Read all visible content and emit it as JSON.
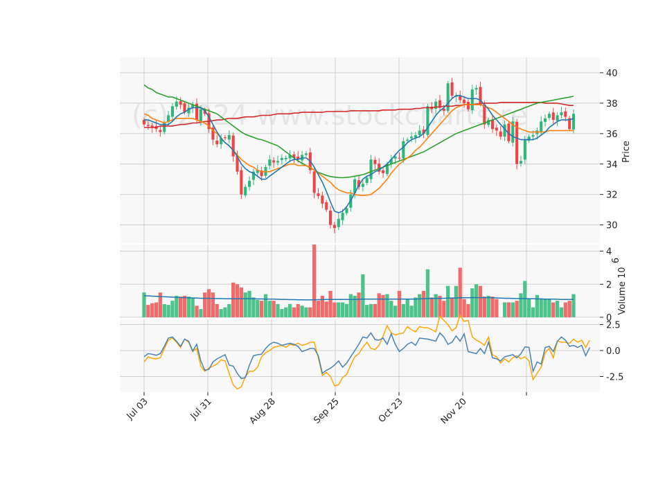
{
  "chart_data": {
    "type": "candlestick",
    "watermark": "(c) 2024 www.stockcharts.re",
    "x_ticks": [
      "Jul 03",
      "Jul 31",
      "Aug 28",
      "Sep 25",
      "Oct 23",
      "Nov 20"
    ],
    "price_axis": {
      "label": "Price",
      "ticks": [
        30,
        32,
        34,
        36,
        38,
        40
      ],
      "ylim": [
        28.8,
        41
      ]
    },
    "volume_axis": {
      "label": "Volume",
      "exponent_label": "10",
      "exponent": "6",
      "ticks": [
        0,
        2,
        4
      ],
      "ylim": [
        0,
        4.4
      ]
    },
    "osc_axis": {
      "ticks": [
        "-2.5",
        "0.0",
        "2.5"
      ],
      "ylim": [
        -4.0,
        3.0
      ]
    },
    "colors": {
      "up": "#2fb67a",
      "down": "#ef4444",
      "up_vol": "#4cc38a",
      "down_vol": "#f26b6b",
      "ma_short": "#1f77b4",
      "ma_mid": "#ff7f0e",
      "ma_long": "#2ca02c",
      "ma_200": "#d62728",
      "vol_ma": "#1f77b4",
      "osc1": "#4682b4",
      "osc2": "#ffa500",
      "panel_bg": "#f8f8f8",
      "grid": "#d0d0d0"
    },
    "closes": [
      36.6,
      36.5,
      36.4,
      36.3,
      36.1,
      36.7,
      37.2,
      37.8,
      38.1,
      37.9,
      37.4,
      37.7,
      37.9,
      36.9,
      37.6,
      37.3,
      36.3,
      35.6,
      35.3,
      35.7,
      35.7,
      35.9,
      34.5,
      33.5,
      32.0,
      32.5,
      32.9,
      33.5,
      33.6,
      33.2,
      33.8,
      34.3,
      34.1,
      34.2,
      34.4,
      34.4,
      34.6,
      34.4,
      34.3,
      34.6,
      34.7,
      33.6,
      32.1,
      31.9,
      31.4,
      31.0,
      30.0,
      29.8,
      30.4,
      30.8,
      31.1,
      32.0,
      33.0,
      32.5,
      32.7,
      33.1,
      34.3,
      34.0,
      33.5,
      33.4,
      34.0,
      34.3,
      34.5,
      34.4,
      35.5,
      35.6,
      35.8,
      35.9,
      36.2,
      36.0,
      37.8,
      37.6,
      38.1,
      37.7,
      37.5,
      39.3,
      38.5,
      38.5,
      38.2,
      38.0,
      37.6,
      38.9,
      39.0,
      38.0,
      36.6,
      36.9,
      36.3,
      36.2,
      35.8,
      36.6,
      35.5,
      36.8,
      34.0,
      34.2,
      35.6,
      35.8,
      35.9,
      36.2,
      36.8,
      37.0,
      37.3,
      36.9,
      37.2,
      37.4,
      37.1,
      36.3,
      37.3
    ],
    "ma_short": [
      36.9,
      36.9,
      36.8,
      36.7,
      36.6,
      36.6,
      36.6,
      36.8,
      37.1,
      37.3,
      37.4,
      37.6,
      37.7,
      37.7,
      37.7,
      37.5,
      37.1,
      36.6,
      36.1,
      35.7,
      35.4,
      35.2,
      34.9,
      34.5,
      34.0,
      33.7,
      33.5,
      33.4,
      33.2,
      33.0,
      33.0,
      33.2,
      33.4,
      33.6,
      33.8,
      34.0,
      34.2,
      34.3,
      34.3,
      34.4,
      34.4,
      34.2,
      33.8,
      33.3,
      32.8,
      32.2,
      31.5,
      30.9,
      30.8,
      30.9,
      31.2,
      31.6,
      32.1,
      32.6,
      33.0,
      33.2,
      33.3,
      33.5,
      33.6,
      33.8,
      34.0,
      34.3,
      34.6,
      34.9,
      35.1,
      35.4,
      35.6,
      35.7,
      35.8,
      36.0,
      36.4,
      36.8,
      37.2,
      37.5,
      37.7,
      38.0,
      38.3,
      38.5,
      38.5,
      38.4,
      38.3,
      38.3,
      38.3,
      38.2,
      37.9,
      37.6,
      37.2,
      36.9,
      36.6,
      36.3,
      36.0,
      35.8,
      35.7,
      35.6,
      35.6,
      35.6,
      35.6,
      35.7,
      35.9,
      36.1,
      36.4,
      36.6,
      36.8,
      36.9,
      36.9,
      36.9,
      37.0
    ],
    "ma_mid": [
      37.3,
      37.2,
      37.0,
      36.9,
      36.8,
      36.7,
      36.8,
      36.9,
      37.0,
      37.0,
      37.0,
      37.0,
      37.0,
      36.9,
      36.8,
      36.7,
      36.5,
      36.2,
      36.0,
      35.7,
      35.4,
      35.2,
      34.9,
      34.6,
      34.3,
      34.1,
      33.9,
      33.8,
      33.6,
      33.5,
      33.5,
      33.5,
      33.6,
      33.7,
      33.8,
      33.9,
      34.0,
      34.0,
      33.9,
      33.9,
      33.9,
      33.8,
      33.6,
      33.4,
      33.2,
      33.0,
      32.8,
      32.5,
      32.3,
      32.2,
      32.1,
      32.1,
      32.0,
      31.95,
      31.93,
      31.95,
      32.0,
      32.2,
      32.4,
      32.7,
      33.0,
      33.4,
      33.7,
      34.0,
      34.2,
      34.4,
      34.6,
      34.9,
      35.1,
      35.4,
      35.7,
      36.0,
      36.3,
      36.6,
      36.9,
      37.2,
      37.5,
      37.7,
      37.8,
      37.9,
      37.9,
      37.9,
      37.9,
      37.9,
      37.8,
      37.7,
      37.6,
      37.4,
      37.2,
      37.0,
      36.8,
      36.6,
      36.4,
      36.3,
      36.2,
      36.1,
      36.1,
      36.1,
      36.1,
      36.1,
      36.2,
      36.2,
      36.2,
      36.2,
      36.2,
      36.2,
      36.2
    ],
    "ma_long": [
      39.2,
      39.0,
      38.9,
      38.7,
      38.6,
      38.5,
      38.4,
      38.4,
      38.3,
      38.2,
      38.1,
      38.0,
      37.9,
      37.8,
      37.7,
      37.6,
      37.5,
      37.4,
      37.3,
      37.1,
      36.9,
      36.7,
      36.5,
      36.3,
      36.1,
      35.95,
      35.85,
      35.75,
      35.65,
      35.6,
      35.5,
      35.4,
      35.3,
      35.2,
      35.0,
      34.8,
      34.6,
      34.4,
      34.2,
      34.05,
      33.9,
      33.75,
      33.6,
      33.45,
      33.35,
      33.25,
      33.18,
      33.14,
      33.11,
      33.1,
      33.12,
      33.15,
      33.2,
      33.25,
      33.3,
      33.4,
      33.5,
      33.6,
      33.7,
      33.8,
      33.9,
      34.0,
      34.1,
      34.2,
      34.3,
      34.4,
      34.5,
      34.6,
      34.7,
      34.8,
      34.95,
      35.1,
      35.25,
      35.4,
      35.55,
      35.7,
      35.85,
      36.0,
      36.1,
      36.2,
      36.3,
      36.4,
      36.5,
      36.6,
      36.7,
      36.8,
      36.9,
      37.0,
      37.1,
      37.2,
      37.3,
      37.4,
      37.5,
      37.6,
      37.7,
      37.8,
      37.9,
      38.0,
      38.05,
      38.1,
      38.15,
      38.2,
      38.25,
      38.3,
      38.35,
      38.4,
      38.45
    ],
    "ma_200": [
      36.4,
      36.4,
      36.4,
      36.4,
      36.5,
      36.5,
      36.5,
      36.5,
      36.55,
      36.6,
      36.6,
      36.65,
      36.7,
      36.7,
      36.75,
      36.8,
      36.8,
      36.85,
      36.9,
      36.9,
      36.95,
      37.0,
      37.0,
      37.0,
      37.05,
      37.1,
      37.1,
      37.1,
      37.15,
      37.2,
      37.2,
      37.2,
      37.25,
      37.3,
      37.3,
      37.3,
      37.3,
      37.35,
      37.35,
      37.4,
      37.4,
      37.4,
      37.4,
      37.4,
      37.4,
      37.45,
      37.45,
      37.45,
      37.45,
      37.45,
      37.45,
      37.5,
      37.5,
      37.5,
      37.5,
      37.5,
      37.5,
      37.5,
      37.5,
      37.55,
      37.55,
      37.55,
      37.55,
      37.6,
      37.6,
      37.6,
      37.6,
      37.65,
      37.65,
      37.7,
      37.7,
      37.7,
      37.75,
      37.75,
      37.8,
      37.8,
      37.8,
      37.85,
      37.85,
      37.9,
      37.9,
      37.9,
      37.95,
      37.95,
      38.0,
      38.0,
      38.0,
      38.0,
      38.05,
      38.05,
      38.05,
      38.05,
      38.05,
      38.05,
      38.05,
      38.05,
      38.05,
      38.05,
      38.05,
      38.0,
      38.0,
      38.0,
      38.0,
      37.95,
      37.9,
      37.85,
      37.85
    ],
    "volume": [
      1.5,
      0.75,
      0.85,
      0.9,
      1.5,
      0.8,
      0.75,
      1.0,
      1.3,
      1.25,
      1.3,
      1.25,
      1.2,
      0.7,
      0.5,
      1.5,
      1.7,
      1.5,
      0.8,
      0.5,
      0.6,
      0.8,
      2.1,
      2.0,
      1.8,
      1.5,
      1.6,
      1.2,
      1.05,
      1.0,
      1.4,
      1.0,
      1.0,
      0.8,
      0.5,
      0.6,
      0.8,
      0.6,
      0.8,
      0.7,
      0.6,
      0.6,
      4.4,
      1.0,
      1.3,
      0.95,
      1.6,
      0.9,
      0.9,
      0.9,
      0.8,
      1.4,
      1.3,
      1.5,
      2.6,
      0.75,
      0.8,
      0.8,
      1.45,
      1.35,
      1.4,
      1.0,
      0.7,
      1.6,
      0.8,
      1.1,
      0.7,
      1.2,
      1.4,
      1.6,
      2.9,
      1.2,
      1.4,
      1.3,
      1.0,
      1.9,
      1.2,
      1.9,
      3.0,
      1.1,
      0.8,
      1.75,
      2.0,
      1.9,
      1.25,
      1.3,
      1.25,
      1.1,
      0.0,
      0.9,
      0.9,
      0.9,
      1.0,
      1.45,
      2.2,
      1.1,
      0.6,
      1.35,
      1.15,
      1.1,
      1.1,
      0.9,
      1.0,
      0.6,
      0.9,
      1.0,
      1.4
    ],
    "vol_ma": [
      1.3,
      1.3,
      1.28,
      1.27,
      1.25,
      1.24,
      1.23,
      1.22,
      1.2,
      1.2,
      1.19,
      1.18,
      1.17,
      1.16,
      1.15,
      1.15,
      1.15,
      1.14,
      1.13,
      1.13,
      1.12,
      1.12,
      1.12,
      1.12,
      1.12,
      1.12,
      1.12,
      1.12,
      1.11,
      1.11,
      1.1,
      1.1,
      1.1,
      1.09,
      1.08,
      1.08,
      1.07,
      1.07,
      1.06,
      1.06,
      1.05,
      1.05,
      1.06,
      1.07,
      1.07,
      1.08,
      1.08,
      1.08,
      1.08,
      1.08,
      1.08,
      1.08,
      1.08,
      1.09,
      1.1,
      1.1,
      1.1,
      1.1,
      1.1,
      1.1,
      1.1,
      1.1,
      1.1,
      1.1,
      1.1,
      1.1,
      1.1,
      1.1,
      1.11,
      1.12,
      1.13,
      1.14,
      1.14,
      1.15,
      1.15,
      1.16,
      1.16,
      1.17,
      1.18,
      1.18,
      1.18,
      1.19,
      1.19,
      1.19,
      1.19,
      1.19,
      1.18,
      1.17,
      1.16,
      1.15,
      1.15,
      1.14,
      1.13,
      1.13,
      1.13,
      1.12,
      1.12,
      1.11,
      1.11,
      1.1,
      1.1,
      1.1,
      1.09,
      1.08,
      1.08,
      1.08,
      1.08
    ],
    "osc1": [
      -0.6,
      -0.3,
      -0.35,
      -0.45,
      -0.3,
      0.4,
      1.2,
      1.3,
      0.9,
      0.4,
      1.1,
      0.9,
      -0.05,
      0.6,
      -1.0,
      -1.9,
      -1.8,
      -1.1,
      -0.8,
      -0.6,
      -0.4,
      -1.4,
      -1.5,
      -2.2,
      -2.7,
      -2.6,
      -1.4,
      -0.5,
      -0.4,
      -0.35,
      0.2,
      0.6,
      0.8,
      0.7,
      0.5,
      0.6,
      0.7,
      0.6,
      0.4,
      -0.1,
      0.05,
      0.2,
      0.2,
      -0.5,
      -2.2,
      -1.9,
      -1.7,
      -1.4,
      -1.0,
      -1.6,
      -1.2,
      -0.6,
      0.0,
      0.6,
      1.3,
      1.2,
      1.7,
      1.05,
      1.0,
      1.2,
      0.6,
      1.6,
      0.6,
      -0.1,
      0.2,
      0.6,
      0.8,
      0.5,
      1.2,
      1.15,
      1.1,
      1.0,
      0.9,
      1.7,
      1.3,
      0.6,
      0.8,
      1.4,
      0.9,
      1.6,
      -0.1,
      -0.2,
      -0.3,
      0.2,
      -0.3,
      0.8,
      -0.7,
      -0.8,
      -1.0,
      -0.6,
      -0.5,
      -0.4,
      -0.7,
      -0.3,
      0.35,
      0.3,
      -2.0,
      -1.1,
      -1.3,
      0.3,
      0.4,
      -0.1,
      0.9,
      1.3,
      1.0,
      0.4,
      0.5,
      0.3,
      0.5,
      -0.5,
      0.3
    ],
    "osc2": [
      -1.1,
      -0.6,
      -0.75,
      -0.8,
      -0.7,
      0.2,
      1.0,
      1.2,
      0.8,
      0.3,
      1.1,
      0.8,
      -0.1,
      0.2,
      -1.5,
      -2.0,
      -1.7,
      -1.5,
      -1.3,
      -0.9,
      -1.0,
      -2.2,
      -3.3,
      -3.7,
      -3.5,
      -2.5,
      -2.0,
      -2.0,
      -1.6,
      -0.6,
      -0.2,
      0.0,
      0.3,
      0.4,
      0.5,
      0.3,
      0.6,
      0.5,
      0.7,
      0.5,
      0.6,
      0.8,
      0.8,
      -0.7,
      -2.4,
      -2.1,
      -2.5,
      -3.4,
      -3.3,
      -2.6,
      -2.3,
      -1.4,
      -0.6,
      -0.3,
      0.3,
      0.8,
      0.2,
      0.1,
      0.5,
      1.4,
      2.4,
      1.7,
      1.5,
      1.6,
      1.7,
      2.3,
      2.0,
      1.8,
      2.3,
      2.2,
      2.2,
      2.0,
      1.8,
      3.3,
      2.9,
      2.5,
      1.9,
      2.2,
      3.4,
      2.8,
      2.9,
      1.3,
      1.0,
      0.8,
      0.5,
      1.3,
      -0.4,
      -0.6,
      -1.2,
      -0.8,
      -1.1,
      -0.7,
      -0.5,
      -0.8,
      -0.6,
      -1.0,
      -2.8,
      -2.2,
      -1.6,
      -0.2,
      0.2,
      -0.7,
      0.9,
      0.8,
      0.8,
      0.7,
      1.1,
      0.8,
      1.0,
      0.3,
      1.0
    ]
  }
}
